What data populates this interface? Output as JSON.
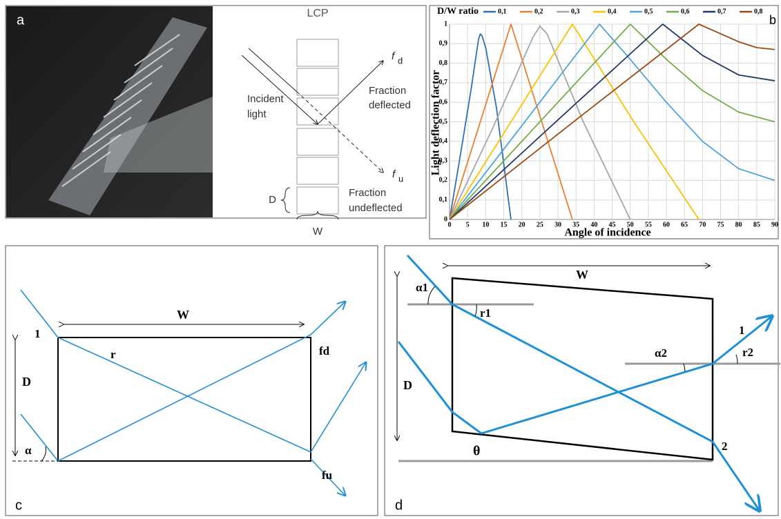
{
  "panel_a": {
    "letter": "a",
    "lcp": "LCP",
    "fd_f": "f",
    "fd_sub": "d",
    "incident": [
      "Incident",
      "light"
    ],
    "deflected": [
      "Fraction",
      "deflected"
    ],
    "fu_f": "f",
    "fu_sub": "u",
    "d_label": "D",
    "undeflected": [
      "Fraction",
      "undeflected"
    ],
    "w_label": "W"
  },
  "chart_data": {
    "type": "line",
    "letter": "b",
    "title": "D/W ratio",
    "ylabel": "Light deflection factor",
    "xlabel": "Angle of incidence",
    "xlim": [
      0,
      90
    ],
    "ylim": [
      0,
      1
    ],
    "grid": true,
    "xticks": [
      0,
      5,
      10,
      15,
      20,
      25,
      30,
      35,
      40,
      45,
      50,
      55,
      60,
      65,
      70,
      75,
      80,
      85,
      90
    ],
    "yticks": [
      0,
      {
        "value": 0.1,
        "label": "0,1"
      },
      {
        "value": 0.2,
        "label": "0,2"
      },
      {
        "value": 0.3,
        "label": "0,3"
      },
      {
        "value": 0.4,
        "label": "0,4"
      },
      {
        "value": 0.5,
        "label": "0,5"
      },
      {
        "value": 0.6,
        "label": "0,6"
      },
      {
        "value": 0.7,
        "label": "0,7"
      },
      {
        "value": 0.8,
        "label": "0,8"
      },
      {
        "value": 0.9,
        "label": "0,9"
      },
      1
    ],
    "series": [
      {
        "name": "0,1",
        "color": "#2f6eb5",
        "x": [
          0,
          3,
          6,
          8,
          8.5,
          9,
          10,
          13,
          17
        ],
        "values": [
          0,
          0.33,
          0.67,
          0.92,
          0.95,
          0.94,
          0.88,
          0.57,
          0
        ]
      },
      {
        "name": "0,2",
        "color": "#ed7d31",
        "x": [
          0,
          8,
          17,
          25,
          34
        ],
        "values": [
          0,
          0.47,
          1,
          0.53,
          0
        ]
      },
      {
        "name": "0,3",
        "color": "#a5a5a5",
        "x": [
          0,
          12,
          23,
          25,
          27,
          37,
          50
        ],
        "values": [
          0,
          0.47,
          0.93,
          0.99,
          0.95,
          0.5,
          0
        ]
      },
      {
        "name": "0,4",
        "color": "#ffc000",
        "x": [
          0,
          17,
          34,
          51,
          69
        ],
        "values": [
          0,
          0.5,
          1,
          0.5,
          0
        ]
      },
      {
        "name": "0,5",
        "color": "#4aa3df",
        "x": [
          0,
          20,
          41.5,
          50,
          60,
          70,
          80,
          90
        ],
        "values": [
          0,
          0.48,
          1,
          0.82,
          0.6,
          0.4,
          0.26,
          0.2
        ]
      },
      {
        "name": "0,6",
        "color": "#70ad47",
        "x": [
          0,
          25,
          50,
          60,
          70,
          80,
          90
        ],
        "values": [
          0,
          0.5,
          1,
          0.82,
          0.66,
          0.55,
          0.5
        ]
      },
      {
        "name": "0,7",
        "color": "#1f3864",
        "x": [
          0,
          30,
          59,
          70,
          80,
          90
        ],
        "values": [
          0,
          0.51,
          1,
          0.84,
          0.74,
          0.71
        ]
      },
      {
        "name": "0,8",
        "color": "#9e480e",
        "x": [
          0,
          35,
          69,
          80,
          85,
          90
        ],
        "values": [
          0,
          0.51,
          1,
          0.91,
          0.88,
          0.87
        ]
      }
    ]
  },
  "panel_c": {
    "letter": "c",
    "w": "W",
    "one": "1",
    "r": "r",
    "fd": "fd",
    "d": "D",
    "alpha": "α",
    "fu": "fu"
  },
  "panel_d": {
    "letter": "d",
    "w": "W",
    "alpha1": "α1",
    "r1": "r1",
    "one": "1",
    "alpha2": "α2",
    "r2": "r2",
    "d": "D",
    "theta": "θ",
    "two": "2"
  }
}
